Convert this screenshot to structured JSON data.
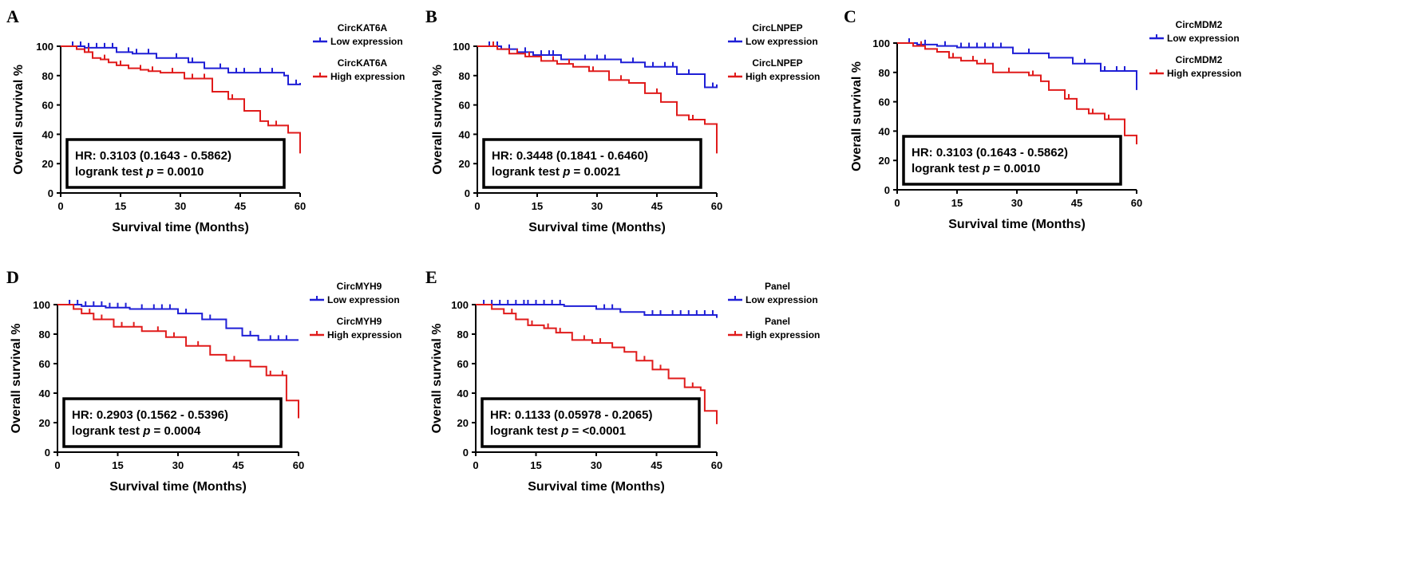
{
  "chart_data": [
    {
      "type": "line",
      "panel_label": "A",
      "xlabel": "Survival time (Months)",
      "ylabel": "Overall survival %",
      "xlim": [
        0,
        60
      ],
      "ylim": [
        0,
        100
      ],
      "xticks": [
        "0",
        "15",
        "30",
        "45",
        "60"
      ],
      "yticks": [
        "0",
        "20",
        "40",
        "60",
        "80",
        "100"
      ],
      "legend_position": "top-right",
      "stats": {
        "hr": "HR:  0.3103 (0.1643 - 0.5862)",
        "logrank_prefix": "logrank test ",
        "p_symbol": "p",
        "p_value": " = 0.0010"
      },
      "series": [
        {
          "name": "CircKAT6A",
          "name2": "Low expression",
          "color": "#1f1fd6",
          "x": [
            0,
            6,
            14,
            18,
            24,
            32,
            36,
            42,
            56,
            57,
            60
          ],
          "y": [
            100,
            99,
            96,
            95,
            92,
            89,
            85,
            82,
            80,
            74,
            75
          ],
          "censor_x": [
            3,
            5,
            7,
            9,
            11,
            13,
            17,
            19,
            22,
            29,
            33,
            40,
            44,
            46,
            50,
            53,
            59
          ]
        },
        {
          "name": "CircKAT6A",
          "name2": "High expression",
          "color": "#e01b1b",
          "x": [
            0,
            4,
            6,
            8,
            10,
            12,
            14,
            17,
            20,
            22,
            25,
            31,
            36,
            38,
            42,
            46,
            50,
            52,
            57,
            60
          ],
          "y": [
            100,
            98,
            96,
            92,
            91,
            89,
            87,
            85,
            84,
            83,
            82,
            78,
            78,
            69,
            64,
            56,
            49,
            46,
            41,
            27
          ],
          "censor_x": [
            7,
            11,
            15,
            20,
            23,
            28,
            33,
            36,
            43,
            50,
            54
          ]
        }
      ]
    },
    {
      "type": "line",
      "panel_label": "B",
      "xlabel": "Survival time (Months)",
      "ylabel": "Overall survival %",
      "xlim": [
        0,
        60
      ],
      "ylim": [
        0,
        100
      ],
      "xticks": [
        "0",
        "15",
        "30",
        "45",
        "60"
      ],
      "yticks": [
        "0",
        "20",
        "40",
        "60",
        "80",
        "100"
      ],
      "legend_position": "top-right",
      "stats": {
        "hr": "HR:  0.3448 (0.1841 - 0.6460)",
        "logrank_prefix": "logrank test ",
        "p_symbol": "p",
        "p_value": " = 0.0021"
      },
      "series": [
        {
          "name": "CircLNPEP",
          "name2": "Low expression",
          "color": "#1f1fd6",
          "x": [
            0,
            6,
            10,
            14,
            21,
            36,
            42,
            50,
            57,
            60
          ],
          "y": [
            100,
            98,
            96,
            94,
            91,
            89,
            86,
            81,
            72,
            74
          ],
          "censor_x": [
            3,
            5,
            8,
            12,
            16,
            18,
            19,
            27,
            30,
            32,
            39,
            44,
            47,
            49,
            53,
            59
          ]
        },
        {
          "name": "CircLNPEP",
          "name2": "High expression",
          "color": "#e01b1b",
          "x": [
            0,
            5,
            8,
            12,
            16,
            20,
            24,
            28,
            33,
            38,
            42,
            46,
            50,
            53,
            57,
            60
          ],
          "y": [
            100,
            98,
            95,
            93,
            90,
            88,
            86,
            83,
            77,
            75,
            68,
            62,
            53,
            50,
            47,
            27
          ],
          "censor_x": [
            4,
            10,
            13,
            19,
            23,
            29,
            36,
            45,
            54
          ]
        }
      ]
    },
    {
      "type": "line",
      "panel_label": "C",
      "xlabel": "Survival time (Months)",
      "ylabel": "Overall survival %",
      "xlim": [
        0,
        60
      ],
      "ylim": [
        0,
        100
      ],
      "xticks": [
        "0",
        "15",
        "30",
        "45",
        "60"
      ],
      "yticks": [
        "0",
        "20",
        "40",
        "60",
        "80",
        "100"
      ],
      "legend_position": "top-right",
      "stats": {
        "hr": "HR:  0.3103 (0.1643 - 0.5862)",
        "logrank_prefix": "logrank test ",
        "p_symbol": "p",
        "p_value": " = 0.0010"
      },
      "series": [
        {
          "name": "CircMDM2",
          "name2": "Low expression",
          "color": "#1f1fd6",
          "x": [
            0,
            5,
            10,
            15,
            29,
            38,
            44,
            51,
            60
          ],
          "y": [
            100,
            99,
            98,
            97,
            93,
            90,
            86,
            81,
            68
          ],
          "censor_x": [
            3,
            7,
            12,
            16,
            18,
            20,
            22,
            24,
            26,
            33,
            47,
            52,
            55,
            57
          ]
        },
        {
          "name": "CircMDM2",
          "name2": "High expression",
          "color": "#e01b1b",
          "x": [
            0,
            4,
            7,
            10,
            13,
            16,
            20,
            24,
            33,
            36,
            38,
            42,
            45,
            48,
            52,
            57,
            60
          ],
          "y": [
            100,
            98,
            96,
            94,
            90,
            88,
            86,
            80,
            78,
            74,
            68,
            62,
            55,
            52,
            48,
            37,
            31
          ],
          "censor_x": [
            6,
            14,
            19,
            22,
            28,
            34,
            43,
            49,
            53
          ]
        }
      ]
    },
    {
      "type": "line",
      "panel_label": "D",
      "xlabel": "Survival time (Months)",
      "ylabel": "Overall survival %",
      "xlim": [
        0,
        60
      ],
      "ylim": [
        0,
        100
      ],
      "xticks": [
        "0",
        "15",
        "30",
        "45",
        "60"
      ],
      "yticks": [
        "0",
        "20",
        "40",
        "60",
        "80",
        "100"
      ],
      "legend_position": "top-right",
      "stats": {
        "hr": "HR:  0.2903 (0.1562 - 0.5396)",
        "logrank_prefix": "logrank test ",
        "p_symbol": "p",
        "p_value": " = 0.0004"
      },
      "series": [
        {
          "name": "CircMYH9",
          "name2": "Low expression",
          "color": "#1f1fd6",
          "x": [
            0,
            6,
            12,
            18,
            30,
            36,
            42,
            46,
            50,
            60
          ],
          "y": [
            100,
            99,
            98,
            97,
            94,
            90,
            84,
            79,
            76,
            76
          ],
          "censor_x": [
            3,
            5,
            7,
            9,
            11,
            13,
            15,
            17,
            21,
            24,
            26,
            28,
            32,
            38,
            48,
            53,
            55,
            57
          ]
        },
        {
          "name": "CircMYH9",
          "name2": "High expression",
          "color": "#e01b1b",
          "x": [
            0,
            4,
            6,
            9,
            14,
            21,
            27,
            32,
            38,
            42,
            48,
            52,
            57,
            60
          ],
          "y": [
            100,
            97,
            94,
            90,
            85,
            82,
            78,
            72,
            66,
            62,
            58,
            52,
            35,
            23
          ],
          "censor_x": [
            8,
            11,
            16,
            19,
            25,
            29,
            35,
            44,
            53,
            56
          ]
        }
      ]
    },
    {
      "type": "line",
      "panel_label": "E",
      "xlabel": "Survival time (Months)",
      "ylabel": "Overall survival %",
      "xlim": [
        0,
        60
      ],
      "ylim": [
        0,
        100
      ],
      "xticks": [
        "0",
        "15",
        "30",
        "45",
        "60"
      ],
      "yticks": [
        "0",
        "20",
        "40",
        "60",
        "80",
        "100"
      ],
      "legend_position": "top-right",
      "stats": {
        "hr": "HR:  0.1133 (0.05978 - 0.2065)",
        "logrank_prefix": "logrank test ",
        "p_symbol": "p",
        "p_value": " = <0.0001"
      },
      "series": [
        {
          "name": "Panel",
          "name2": "Low expression",
          "color": "#1f1fd6",
          "x": [
            0,
            22,
            30,
            36,
            42,
            60
          ],
          "y": [
            100,
            99,
            97,
            95,
            93,
            91
          ],
          "censor_x": [
            2,
            4,
            6,
            8,
            10,
            12,
            13,
            15,
            17,
            19,
            21,
            32,
            34,
            44,
            46,
            49,
            51,
            53,
            55,
            57,
            59
          ]
        },
        {
          "name": "Panel",
          "name2": "High expression",
          "color": "#e01b1b",
          "x": [
            0,
            4,
            7,
            10,
            13,
            17,
            20,
            24,
            29,
            34,
            37,
            40,
            44,
            48,
            52,
            56,
            57,
            60
          ],
          "y": [
            100,
            97,
            94,
            90,
            86,
            84,
            81,
            76,
            74,
            71,
            68,
            62,
            56,
            50,
            44,
            42,
            28,
            19
          ],
          "censor_x": [
            9,
            14,
            18,
            21,
            27,
            31,
            42,
            46,
            54
          ]
        }
      ]
    }
  ]
}
